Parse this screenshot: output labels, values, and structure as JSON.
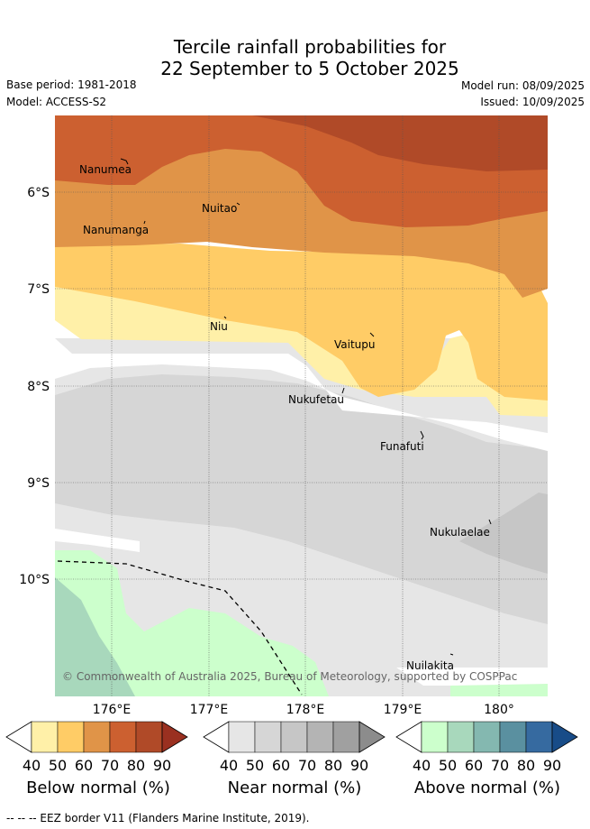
{
  "title_line1": "Tercile rainfall probabilities for",
  "title_line2": "22 September to 5 October 2025",
  "base_period": "Base period: 1981-2018",
  "model": "Model: ACCESS-S2",
  "model_run": "Model run: 08/09/2025",
  "issued": "Issued: 10/09/2025",
  "places": {
    "nanumea": "Nanumea",
    "nanumanga": "Nanumanga",
    "nuitao": "Nuitao",
    "niu": "Niu",
    "vaitupu": "Vaitupu",
    "nukufetau": "Nukufetau",
    "funafuti": "Funafuti",
    "nukulaelae": "Nukulaelae",
    "nuilakita": "Nuilakita"
  },
  "lat_ticks": [
    "6°S",
    "7°S",
    "8°S",
    "9°S",
    "10°S"
  ],
  "lon_ticks": [
    "176°E",
    "177°E",
    "178°E",
    "179°E",
    "180°"
  ],
  "copyright": "© Commonwealth of Australia 2025, Bureau of Meteorology, supported by COSPPac",
  "colorbars": [
    {
      "name": "below",
      "title": "Below normal (%)",
      "ticks": [
        "40",
        "50",
        "60",
        "70",
        "80",
        "90"
      ],
      "colors": [
        "#fff0a8",
        "#ffcc66",
        "#e09448",
        "#cc6030",
        "#b04a28",
        "#9a3020"
      ]
    },
    {
      "name": "near",
      "title": "Near normal (%)",
      "ticks": [
        "40",
        "50",
        "60",
        "70",
        "80",
        "90"
      ],
      "colors": [
        "#e6e6e6",
        "#d6d6d6",
        "#c6c6c6",
        "#b4b4b4",
        "#a0a0a0",
        "#8c8c8c"
      ]
    },
    {
      "name": "above",
      "title": "Above normal (%)",
      "ticks": [
        "40",
        "50",
        "60",
        "70",
        "80",
        "90"
      ],
      "colors": [
        "#ccffcc",
        "#a8d8bc",
        "#84b8b0",
        "#5a90a0",
        "#366aa0",
        "#184c88"
      ]
    }
  ],
  "footer": "--  --  -- EEZ border V11 (Flanders Marine Institute, 2019)."
}
